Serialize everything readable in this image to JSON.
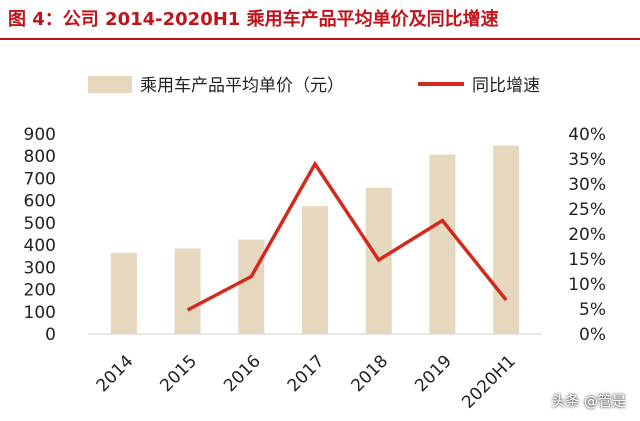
{
  "title": "图 4：公司 2014-2020H1 乘用车产品平均单价及同比增速",
  "watermark": "头条 @管是",
  "colors": {
    "title": "#c0141b",
    "bar": "#e6d7bf",
    "line": "#d42a1e",
    "axis_text": "#222222"
  },
  "chart_data": {
    "type": "bar",
    "categories": [
      "2014",
      "2015",
      "2016",
      "2017",
      "2018",
      "2019",
      "2020H1"
    ],
    "series": [
      {
        "name": "乘用车产品平均单价（元）",
        "type": "bar",
        "axis": "left",
        "values": [
          365,
          385,
          425,
          575,
          658,
          808,
          848
        ]
      },
      {
        "name": "同比增速",
        "type": "line",
        "axis": "right",
        "values": [
          null,
          4.8,
          11.5,
          34.0,
          14.8,
          22.7,
          6.8
        ]
      }
    ],
    "y_left": {
      "min": 0,
      "max": 900,
      "step": 100,
      "ticks": [
        "0",
        "100",
        "200",
        "300",
        "400",
        "500",
        "600",
        "700",
        "800",
        "900"
      ]
    },
    "y_right": {
      "min": 0,
      "max": 40,
      "step": 5,
      "ticks": [
        "0%",
        "5%",
        "10%",
        "15%",
        "20%",
        "25%",
        "30%",
        "35%",
        "40%"
      ]
    },
    "legend_position": "top",
    "grid": false
  }
}
